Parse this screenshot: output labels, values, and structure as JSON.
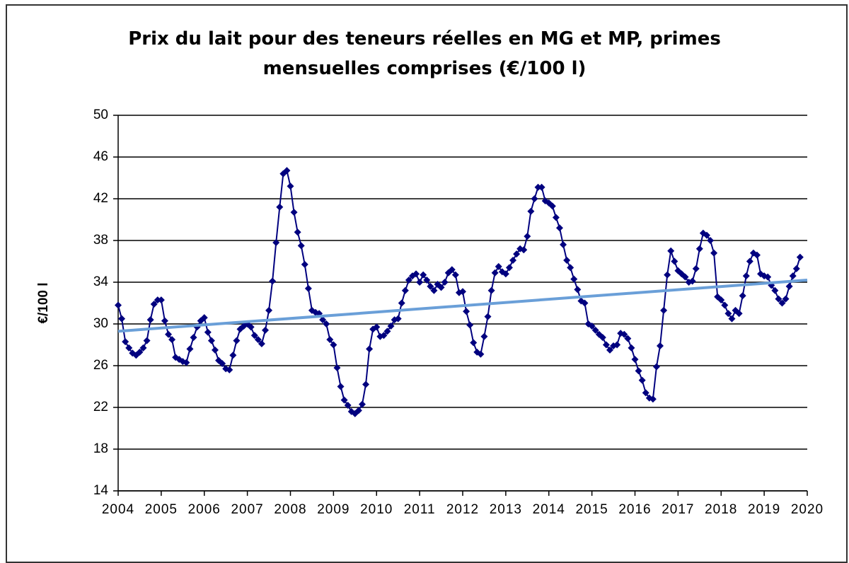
{
  "chart_data": {
    "type": "line",
    "title": "Prix du lait pour des teneurs réelles en MG et MP, primes mensuelles comprises (€/100 l)",
    "ylabel": "€/100 l",
    "xlim": [
      2004,
      2020
    ],
    "xticks": [
      2004,
      2005,
      2006,
      2007,
      2008,
      2009,
      2010,
      2011,
      2012,
      2013,
      2014,
      2015,
      2016,
      2017,
      2018,
      2019,
      2020
    ],
    "ylim": [
      14,
      50
    ],
    "yticks": [
      14,
      18,
      22,
      26,
      30,
      34,
      38,
      42,
      46,
      50
    ],
    "grid": true,
    "series": [
      {
        "color": "#00007f",
        "markers": true,
        "x": [
          2004,
          2004.083,
          2004.167,
          2004.25,
          2004.333,
          2004.417,
          2004.5,
          2004.583,
          2004.667,
          2004.75,
          2004.833,
          2004.917,
          2005,
          2005.083,
          2005.167,
          2005.25,
          2005.333,
          2005.417,
          2005.5,
          2005.583,
          2005.667,
          2005.75,
          2005.833,
          2005.917,
          2006,
          2006.083,
          2006.167,
          2006.25,
          2006.333,
          2006.417,
          2006.5,
          2006.583,
          2006.667,
          2006.75,
          2006.833,
          2006.917,
          2007,
          2007.083,
          2007.167,
          2007.25,
          2007.333,
          2007.417,
          2007.5,
          2007.583,
          2007.667,
          2007.75,
          2007.833,
          2007.917,
          2008,
          2008.083,
          2008.167,
          2008.25,
          2008.333,
          2008.417,
          2008.5,
          2008.583,
          2008.667,
          2008.75,
          2008.833,
          2008.917,
          2009,
          2009.083,
          2009.167,
          2009.25,
          2009.333,
          2009.417,
          2009.5,
          2009.583,
          2009.667,
          2009.75,
          2009.833,
          2009.917,
          2010,
          2010.083,
          2010.167,
          2010.25,
          2010.333,
          2010.417,
          2010.5,
          2010.583,
          2010.667,
          2010.75,
          2010.833,
          2010.917,
          2011,
          2011.083,
          2011.167,
          2011.25,
          2011.333,
          2011.417,
          2011.5,
          2011.583,
          2011.667,
          2011.75,
          2011.833,
          2011.917,
          2012,
          2012.083,
          2012.167,
          2012.25,
          2012.333,
          2012.417,
          2012.5,
          2012.583,
          2012.667,
          2012.75,
          2012.833,
          2012.917,
          2013,
          2013.083,
          2013.167,
          2013.25,
          2013.333,
          2013.417,
          2013.5,
          2013.583,
          2013.667,
          2013.75,
          2013.833,
          2013.917,
          2014,
          2014.083,
          2014.167,
          2014.25,
          2014.333,
          2014.417,
          2014.5,
          2014.583,
          2014.667,
          2014.75,
          2014.833,
          2014.917,
          2015,
          2015.083,
          2015.167,
          2015.25,
          2015.333,
          2015.417,
          2015.5,
          2015.583,
          2015.667,
          2015.75,
          2015.833,
          2015.917,
          2016,
          2016.083,
          2016.167,
          2016.25,
          2016.333,
          2016.417,
          2016.5,
          2016.583,
          2016.667,
          2016.75,
          2016.833,
          2016.917,
          2017,
          2017.083,
          2017.167,
          2017.25,
          2017.333,
          2017.417,
          2017.5,
          2017.583,
          2017.667,
          2017.75,
          2017.833,
          2017.917,
          2018,
          2018.083,
          2018.167,
          2018.25,
          2018.333,
          2018.417,
          2018.5,
          2018.583,
          2018.667,
          2018.75,
          2018.833,
          2018.917,
          2019,
          2019.083,
          2019.167,
          2019.25,
          2019.333,
          2019.417,
          2019.5,
          2019.583,
          2019.667,
          2019.75,
          2019.833
        ],
        "values": [
          31.8,
          30.5,
          28.3,
          27.7,
          27.2,
          27.0,
          27.3,
          27.7,
          28.4,
          30.4,
          31.9,
          32.3,
          32.3,
          30.3,
          29.0,
          28.5,
          26.8,
          26.6,
          26.4,
          26.3,
          27.6,
          28.7,
          29.7,
          30.3,
          30.6,
          29.2,
          28.4,
          27.5,
          26.5,
          26.2,
          25.7,
          25.6,
          27.0,
          28.4,
          29.5,
          29.8,
          30.0,
          29.7,
          28.9,
          28.5,
          28.1,
          29.4,
          31.3,
          34.1,
          37.8,
          41.2,
          44.4,
          44.7,
          43.2,
          40.7,
          38.8,
          37.5,
          35.7,
          33.4,
          31.3,
          31.1,
          31.0,
          30.4,
          30.0,
          28.5,
          28.0,
          25.8,
          24.0,
          22.7,
          22.2,
          21.6,
          21.4,
          21.7,
          22.3,
          24.2,
          27.6,
          29.5,
          29.7,
          28.8,
          28.9,
          29.3,
          29.8,
          30.4,
          30.5,
          32.0,
          33.2,
          34.2,
          34.6,
          34.8,
          34.0,
          34.7,
          34.2,
          33.6,
          33.2,
          33.8,
          33.5,
          34.0,
          34.9,
          35.2,
          34.7,
          33.0,
          33.1,
          31.2,
          29.9,
          28.2,
          27.3,
          27.1,
          28.8,
          30.7,
          33.2,
          34.9,
          35.5,
          35.0,
          34.8,
          35.4,
          36.1,
          36.7,
          37.2,
          37.1,
          38.4,
          40.8,
          42.0,
          43.1,
          43.1,
          41.8,
          41.6,
          41.3,
          40.2,
          39.2,
          37.6,
          36.1,
          35.4,
          34.3,
          33.3,
          32.2,
          32.0,
          30.0,
          29.8,
          29.4,
          29.0,
          28.7,
          28.0,
          27.5,
          27.9,
          28.0,
          29.1,
          29.0,
          28.6,
          27.7,
          26.6,
          25.5,
          24.6,
          23.4,
          22.9,
          22.8,
          25.9,
          27.9,
          31.3,
          34.7,
          37.0,
          36.0,
          35.1,
          34.8,
          34.5,
          34.0,
          34.1,
          35.3,
          37.2,
          38.7,
          38.5,
          38.0,
          36.8,
          32.6,
          32.3,
          31.8,
          31.0,
          30.5,
          31.3,
          31.0,
          32.7,
          34.6,
          36.0,
          36.8,
          36.6,
          34.8,
          34.6,
          34.5,
          33.7,
          33.2,
          32.4,
          32.0,
          32.4,
          33.6,
          34.6,
          35.3,
          36.4
        ]
      },
      {
        "color": "#6a9fd8",
        "markers": false,
        "x": [
          2004,
          2020
        ],
        "values": [
          29.3,
          34.2
        ]
      }
    ]
  }
}
